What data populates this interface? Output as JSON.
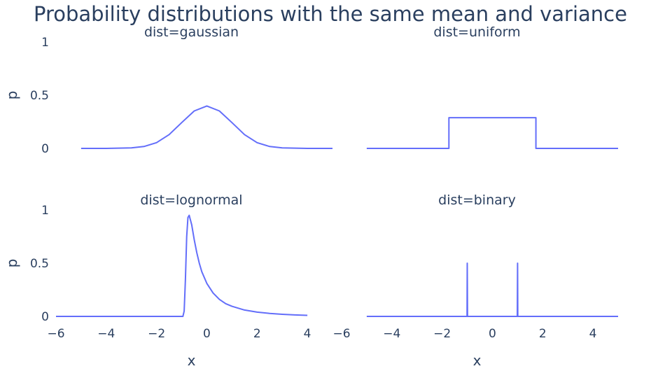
{
  "title": "Probability distributions with the same mean and variance",
  "chart_data": {
    "type": "line",
    "title": "Probability distributions with the same mean and variance",
    "xlabel": "x",
    "ylabel": "p",
    "xlim": [
      -6,
      5
    ],
    "ylim": [
      0,
      1
    ],
    "xticks": [
      "−6",
      "−4",
      "−2",
      "0",
      "2",
      "4"
    ],
    "yticks": [
      "0",
      "0.5",
      "1"
    ],
    "grid": false,
    "line_color": "#636efa",
    "panels": [
      {
        "name": "dist=gaussian",
        "x": [
          -5,
          -4,
          -3,
          -2.5,
          -2,
          -1.5,
          -1,
          -0.5,
          0,
          0.5,
          1,
          1.5,
          2,
          2.5,
          3,
          4,
          5
        ],
        "y": [
          0.0,
          0.0001,
          0.0044,
          0.0175,
          0.054,
          0.1295,
          0.242,
          0.352,
          0.399,
          0.352,
          0.242,
          0.1295,
          0.054,
          0.0175,
          0.0044,
          0.0001,
          0.0
        ]
      },
      {
        "name": "dist=uniform",
        "x": [
          -5,
          -1.73,
          -1.73,
          1.73,
          1.73,
          5
        ],
        "y": [
          0,
          0,
          0.289,
          0.289,
          0,
          0
        ]
      },
      {
        "name": "dist=lognormal",
        "x": [
          -6,
          -0.95,
          -0.9,
          -0.85,
          -0.8,
          -0.75,
          -0.7,
          -0.6,
          -0.5,
          -0.4,
          -0.3,
          -0.2,
          0,
          0.25,
          0.5,
          0.75,
          1,
          1.5,
          2,
          2.5,
          3,
          3.5,
          4
        ],
        "y": [
          0,
          0,
          0.05,
          0.35,
          0.75,
          0.93,
          0.95,
          0.86,
          0.72,
          0.6,
          0.5,
          0.42,
          0.31,
          0.22,
          0.16,
          0.12,
          0.095,
          0.06,
          0.04,
          0.028,
          0.02,
          0.014,
          0.01
        ]
      },
      {
        "name": "dist=binary",
        "x": [
          -5,
          -1.01,
          -1,
          -0.99,
          0.99,
          1,
          1.01,
          5
        ],
        "y": [
          0,
          0,
          0.5,
          0,
          0,
          0.5,
          0,
          0
        ]
      }
    ]
  }
}
